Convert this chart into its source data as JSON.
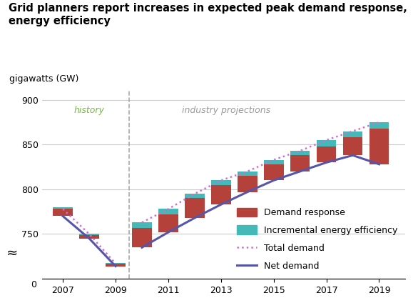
{
  "title": "Grid planners report increases in expected peak demand response,\nenergy efficiency",
  "ylabel": "gigawatts (GW)",
  "years_history": [
    2007,
    2008,
    2009
  ],
  "net_demand_history": [
    770,
    745,
    714
  ],
  "total_demand_history": [
    778,
    750,
    717
  ],
  "years_projection": [
    2010,
    2011,
    2012,
    2013,
    2014,
    2015,
    2016,
    2017,
    2018,
    2019
  ],
  "net_demand_projection": [
    735,
    752,
    768,
    783,
    797,
    810,
    820,
    830,
    838,
    828
  ],
  "total_demand_projection": [
    763,
    778,
    795,
    810,
    820,
    833,
    843,
    855,
    865,
    875
  ],
  "demand_response": [
    22,
    20,
    22,
    22,
    18,
    18,
    18,
    18,
    20,
    40
  ],
  "incremental_ee": [
    6,
    6,
    5,
    5,
    5,
    5,
    5,
    7,
    7,
    7
  ],
  "history_label": "history",
  "projection_label": "industry projections",
  "divider_x": 2009.5,
  "color_demand_response": "#b5413b",
  "color_incremental_ee": "#45b8b8",
  "color_total_demand": "#d070d0",
  "color_net_demand": "#5555aa",
  "ylim_top": 910,
  "ylim_data_bottom": 700,
  "yticks_data": [
    700,
    750,
    800,
    850,
    900
  ],
  "ytick_labels": [
    "",
    "750",
    "800",
    "850",
    "900"
  ],
  "xticks": [
    2007,
    2009,
    2011,
    2013,
    2015,
    2017,
    2019
  ],
  "background_color": "#ffffff",
  "grid_color": "#cccccc",
  "history_color": "#7ab648",
  "projection_color": "#999999",
  "bar_width": 0.75
}
